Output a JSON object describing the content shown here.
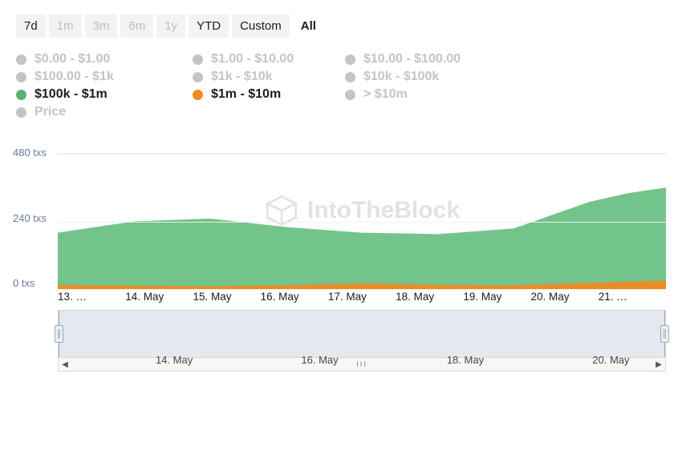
{
  "range_selector": {
    "options": [
      {
        "label": "7d",
        "state": "enabled"
      },
      {
        "label": "1m",
        "state": "disabled"
      },
      {
        "label": "3m",
        "state": "disabled"
      },
      {
        "label": "6m",
        "state": "disabled"
      },
      {
        "label": "1y",
        "state": "disabled"
      },
      {
        "label": "YTD",
        "state": "enabled"
      },
      {
        "label": "Custom",
        "state": "enabled"
      },
      {
        "label": "All",
        "state": "active"
      }
    ]
  },
  "legend": {
    "items": [
      {
        "label": "$0.00 - $1.00",
        "on": false,
        "color": "#c4c4c4"
      },
      {
        "label": "$1.00 - $10.00",
        "on": false,
        "color": "#c4c4c4"
      },
      {
        "label": "$10.00 - $100.00",
        "on": false,
        "color": "#c4c4c4"
      },
      {
        "label": "$100.00 - $1k",
        "on": false,
        "color": "#c4c4c4"
      },
      {
        "label": "$1k - $10k",
        "on": false,
        "color": "#c4c4c4"
      },
      {
        "label": "$10k - $100k",
        "on": false,
        "color": "#c4c4c4"
      },
      {
        "label": "$100k - $1m",
        "on": true,
        "color": "#57b371"
      },
      {
        "label": "$1m - $10m",
        "on": true,
        "color": "#f08a24"
      },
      {
        "label": "> $10m",
        "on": false,
        "color": "#c4c4c4"
      },
      {
        "label": "Price",
        "on": false,
        "color": "#c4c4c4"
      }
    ]
  },
  "chart": {
    "type": "area",
    "y_axis": {
      "ticks": [
        480,
        240,
        0
      ],
      "suffix": " txs",
      "max": 480,
      "grid_color": "#eeeeee",
      "label_color": "#6b7a99",
      "label_fontsize": 13
    },
    "x_axis": {
      "labels": [
        "13. …",
        "14. May",
        "15. May",
        "16. May",
        "17. May",
        "18. May",
        "19. May",
        "20. May",
        "21. …"
      ],
      "label_color": "#1c1c1c",
      "label_fontsize": 13.5
    },
    "series": [
      {
        "name": "$100k - $1m",
        "color": "#6cc184",
        "fill_opacity": 0.95,
        "x": [
          0,
          1,
          2,
          3,
          4,
          5,
          6,
          7,
          7.5,
          8
        ],
        "y": [
          200,
          240,
          250,
          220,
          200,
          195,
          215,
          310,
          340,
          360
        ]
      },
      {
        "name": "$1m - $10m",
        "color": "#f08a24",
        "fill_opacity": 0.95,
        "x": [
          0,
          1,
          2,
          3,
          4,
          5,
          6,
          7,
          8
        ],
        "y": [
          15,
          12,
          10,
          14,
          20,
          15,
          13,
          22,
          30
        ]
      }
    ],
    "watermark_text": "IntoTheBlock",
    "watermark_color": "#e2e2e2",
    "background_color": "#ffffff"
  },
  "navigator": {
    "labels": [
      {
        "text": "14. May",
        "pos_pct": 16
      },
      {
        "text": "16. May",
        "pos_pct": 40
      },
      {
        "text": "18. May",
        "pos_pct": 64
      },
      {
        "text": "20. May",
        "pos_pct": 88
      }
    ],
    "mask_color": "rgba(130,150,180,0.22)",
    "border_color": "#d9d9d9",
    "handle_color": "#9aa7bd",
    "scroll_left": "◀",
    "scroll_right": "▶",
    "scroll_thumb": "III"
  }
}
